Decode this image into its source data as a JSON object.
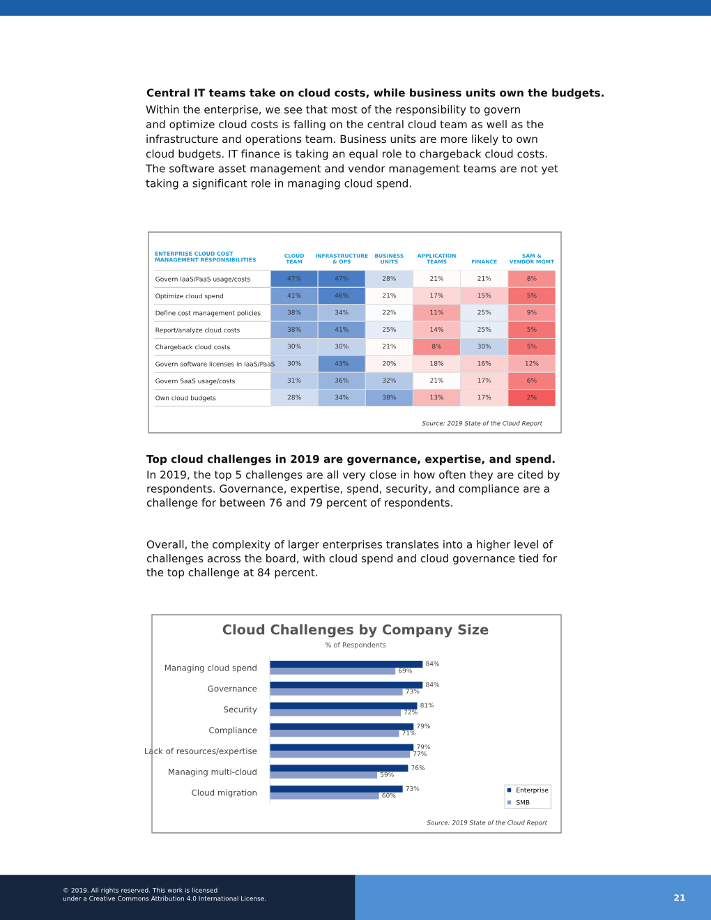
{
  "chart_data": [
    {
      "type": "heatmap",
      "title": "ENTERPRISE CLOUD COST\nMANAGEMENT RESPONSIBILITIES",
      "categories": [
        "CLOUD\nTEAM",
        "INFRASTRUCTURE\n& OPS",
        "BUSINESS\nUNITS",
        "APPLICATION\nTEAMS",
        "FINANCE",
        "SAM &\nVENDOR MGMT"
      ],
      "y_categories": [
        "Govern IaaS/PaaS usage/costs",
        "Optimize cloud spend",
        "Define cost management policies",
        "Report/analyze cloud costs",
        "Chargeback cloud costs",
        "Govern software licenses in IaaS/PaaS",
        "Govern SaaS usage/costs",
        "Own cloud budgets"
      ],
      "cells": [
        [
          47,
          47,
          28,
          21,
          21,
          8
        ],
        [
          41,
          46,
          21,
          17,
          15,
          5
        ],
        [
          38,
          34,
          22,
          11,
          25,
          9
        ],
        [
          38,
          41,
          25,
          14,
          25,
          5
        ],
        [
          30,
          30,
          21,
          8,
          30,
          5
        ],
        [
          30,
          43,
          20,
          18,
          16,
          12
        ],
        [
          31,
          36,
          32,
          21,
          17,
          6
        ],
        [
          28,
          34,
          38,
          13,
          17,
          2
        ]
      ],
      "cell_labels": [
        [
          "47%",
          "47%",
          "28%",
          "21%",
          "21%",
          "8%"
        ],
        [
          "41%",
          "46%",
          "21%",
          "17%",
          "15%",
          "5%"
        ],
        [
          "38%",
          "34%",
          "22%",
          "11%",
          "25%",
          "9%"
        ],
        [
          "38%",
          "41%",
          "25%",
          "14%",
          "25%",
          "5%"
        ],
        [
          "30%",
          "30%",
          "21%",
          "8%",
          "30%",
          "5%"
        ],
        [
          "30%",
          "43%",
          "20%",
          "18%",
          "16%",
          "12%"
        ],
        [
          "31%",
          "36%",
          "32%",
          "21%",
          "17%",
          "6%"
        ],
        [
          "28%",
          "34%",
          "38%",
          "13%",
          "17%",
          "2%"
        ]
      ],
      "annotations": [
        "Central IT teams take on cloud costs, while business units own the budgets.",
        "Within the enterprise, we see that most of the responsibility to govern\nand optimize cloud costs is falling on the central cloud team as well as the\ninfrastructure and operations team. Business units are more likely to own\ncloud budgets. IT finance is taking an equal role to chargeback cloud costs.\nThe software asset management and vendor management teams are not yet\ntaking a significant role in managing cloud spend.",
        "Source: 2019 State of the Cloud Report"
      ]
    },
    {
      "type": "bar",
      "orientation": "horizontal",
      "title": "Cloud Challenges by Company Size",
      "subtitle": "% of Respondents",
      "categories": [
        "Managing cloud spend",
        "Governance",
        "Security",
        "Compliance",
        "Lack of resources/expertise",
        "Managing multi-cloud",
        "Cloud migration"
      ],
      "series": [
        {
          "name": "Enterprise",
          "color": "#0b3a82",
          "values": [
            84,
            84,
            81,
            79,
            79,
            76,
            73
          ],
          "value_labels": [
            "84%",
            "84%",
            "81%",
            "79%",
            "79%",
            "76%",
            "73%"
          ]
        },
        {
          "name": "SMB",
          "color": "#8a9cc9",
          "values": [
            69,
            73,
            72,
            71,
            77,
            59,
            60
          ],
          "value_labels": [
            "69%",
            "73%",
            "72%",
            "71%",
            "77%",
            "59%",
            "60%"
          ]
        }
      ],
      "tick_labels": "y",
      "legend": "bottom right",
      "annotations": [
        "Top cloud challenges in 2019 are governance, expertise, and spend.",
        "In 2019, the top 5 challenges are all very close in how often they are cited by\nrespondents. Governance, expertise, spend, security, and compliance are a\nchallenge for between 76 and 79 percent of respondents.",
        "Overall, the complexity of larger enterprises translates into a higher level of\nchallenges across the board, with cloud spend and cloud governance tied for\nthe top challenge at 84 percent.",
        "Source: 2019 State of the Cloud Report",
        "© 2019. All rights reserved. This work is licensed\nunder a Creative Commons Attribution 4.0 International License.",
        "21"
      ]
    }
  ]
}
